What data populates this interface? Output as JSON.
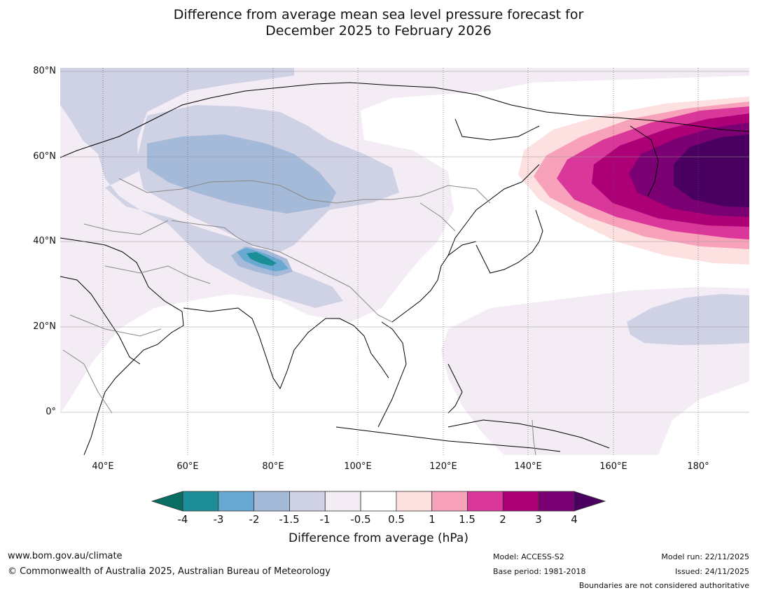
{
  "title": {
    "line1": "Difference from average mean sea level pressure forecast for",
    "line2": "December 2025 to February 2026"
  },
  "axes": {
    "lat_labels": [
      "80°N",
      "60°N",
      "40°N",
      "20°N",
      "0°"
    ],
    "lon_labels": [
      "40°E",
      "60°E",
      "80°E",
      "100°E",
      "120°E",
      "140°E",
      "160°E",
      "180°"
    ]
  },
  "colorbar": {
    "title": "Difference from average (hPa)",
    "ticks": [
      "-4",
      "-3",
      "-2",
      "-1.5",
      "-1",
      "-0.5",
      "0.5",
      "1",
      "1.5",
      "2",
      "3",
      "4"
    ],
    "colors": [
      "#1b8e98",
      "#68a9d2",
      "#a5b9d8",
      "#cfd1e4",
      "#f4ecf5",
      "#ffffff",
      "#fde0e0",
      "#f7a1ba",
      "#d93799",
      "#ad0077",
      "#7b0073"
    ],
    "under_color": "#0a6e62",
    "over_color": "#4a0060"
  },
  "footer": {
    "website": "www.bom.gov.au/climate",
    "copyright": "© Commonwealth of Australia 2025, Australian Bureau of Meteorology",
    "model": "Model: ACCESS-S2",
    "base_period": "Base period: 1981-2018",
    "model_run": "Model run: 22/11/2025",
    "issued": "Issued: 24/11/2025",
    "disclaimer": "Boundaries are not considered authoritative"
  }
}
